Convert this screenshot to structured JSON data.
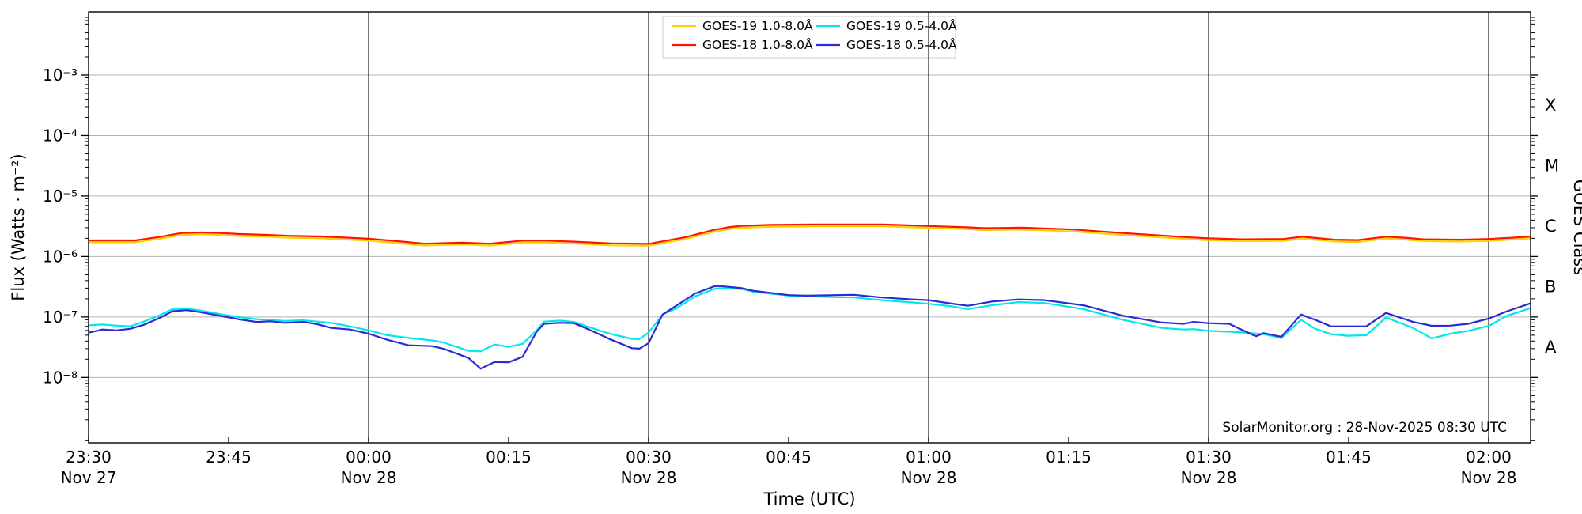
{
  "watermark": "SolarMonitor.org : 28-Nov-2025 08:30 UTC",
  "chart_data": {
    "type": "line",
    "title": "",
    "xlabel": "Time (UTC)",
    "ylabel_left": "Flux (Watts · m⁻²)",
    "ylabel_right": "GOES Class",
    "grid": {
      "horizontal_decades": true,
      "vertical_30min": true,
      "h_color": "#b3b3b3",
      "v_color": "#2e2e2e"
    },
    "x_axis": {
      "units": "minutes after 23:30 UT",
      "t_min": 0,
      "t_max": 154.5,
      "ticks": [
        {
          "t": 0,
          "label": "23:30",
          "date": "Nov 27",
          "gridline": false
        },
        {
          "t": 15,
          "label": "23:45",
          "date": "",
          "gridline": false
        },
        {
          "t": 30,
          "label": "00:00",
          "date": "Nov 28",
          "gridline": true
        },
        {
          "t": 45,
          "label": "00:15",
          "date": "",
          "gridline": false
        },
        {
          "t": 60,
          "label": "00:30",
          "date": "Nov 28",
          "gridline": true
        },
        {
          "t": 75,
          "label": "00:45",
          "date": "",
          "gridline": false
        },
        {
          "t": 90,
          "label": "01:00",
          "date": "Nov 28",
          "gridline": true
        },
        {
          "t": 105,
          "label": "01:15",
          "date": "",
          "gridline": false
        },
        {
          "t": 120,
          "label": "01:30",
          "date": "Nov 28",
          "gridline": true
        },
        {
          "t": 135,
          "label": "01:45",
          "date": "",
          "gridline": false
        },
        {
          "t": 150,
          "label": "02:00",
          "date": "Nov 28",
          "gridline": true
        }
      ]
    },
    "y_axis": {
      "scale": "log",
      "decade_labels": [
        "10⁻³",
        "10⁻⁴",
        "10⁻⁵",
        "10⁻⁶",
        "10⁻⁷",
        "10⁻⁸"
      ],
      "decades": [
        -3,
        -4,
        -5,
        -6,
        -7,
        -8
      ],
      "log_top": -1.954,
      "log_bottom": -9.081
    },
    "right_axis_classes": [
      {
        "label": "X",
        "log_center": -3.5
      },
      {
        "label": "M",
        "log_center": -4.5
      },
      {
        "label": "C",
        "log_center": -5.5
      },
      {
        "label": "B",
        "log_center": -6.5
      },
      {
        "label": "A",
        "log_center": -7.5
      }
    ],
    "legend": {
      "position": "top-center",
      "columns": 2,
      "entries": [
        {
          "label": "GOES-19 1.0-8.0Å",
          "color": "#ffd200"
        },
        {
          "label": "GOES-18 1.0-8.0Å",
          "color": "#ff1400"
        },
        {
          "label": "GOES-19 0.5-4.0Å",
          "color": "#00e8e8"
        },
        {
          "label": "GOES-18 0.5-4.0Å",
          "color": "#2a2ad6"
        }
      ]
    },
    "series": [
      {
        "name": "GOES-19 1.0-8.0Å",
        "color": "#ffd200",
        "width": 2.2,
        "points": [
          [
            0,
            1.72e-06
          ],
          [
            5,
            1.72e-06
          ],
          [
            7.5,
            1.95e-06
          ],
          [
            10,
            2.28e-06
          ],
          [
            12,
            2.33e-06
          ],
          [
            14,
            2.28e-06
          ],
          [
            16,
            2.19e-06
          ],
          [
            19,
            2.12e-06
          ],
          [
            21.5,
            2.05e-06
          ],
          [
            25,
            2e-06
          ],
          [
            30,
            1.83e-06
          ],
          [
            33,
            1.67e-06
          ],
          [
            36,
            1.52e-06
          ],
          [
            40,
            1.58e-06
          ],
          [
            43,
            1.52e-06
          ],
          [
            46.5,
            1.7e-06
          ],
          [
            49,
            1.7e-06
          ],
          [
            52,
            1.64e-06
          ],
          [
            56,
            1.53e-06
          ],
          [
            60,
            1.51e-06
          ],
          [
            64,
            1.95e-06
          ],
          [
            67,
            2.57e-06
          ],
          [
            68.5,
            2.84e-06
          ],
          [
            70,
            2.99e-06
          ],
          [
            73,
            3.1e-06
          ],
          [
            78,
            3.16e-06
          ],
          [
            85,
            3.16e-06
          ],
          [
            90,
            2.98e-06
          ],
          [
            94,
            2.84e-06
          ],
          [
            96,
            2.74e-06
          ],
          [
            100,
            2.79e-06
          ],
          [
            105.5,
            2.6e-06
          ],
          [
            111,
            2.26e-06
          ],
          [
            117.5,
            1.95e-06
          ],
          [
            120,
            1.86e-06
          ],
          [
            123.5,
            1.8e-06
          ],
          [
            128,
            1.81e-06
          ],
          [
            130,
            1.98e-06
          ],
          [
            133.5,
            1.77e-06
          ],
          [
            136,
            1.74e-06
          ],
          [
            139,
            1.98e-06
          ],
          [
            141,
            1.91e-06
          ],
          [
            143,
            1.8e-06
          ],
          [
            147,
            1.77e-06
          ],
          [
            150,
            1.81e-06
          ],
          [
            152.5,
            1.91e-06
          ],
          [
            154.5,
            2e-06
          ]
        ]
      },
      {
        "name": "GOES-18 1.0-8.0Å",
        "color": "#ff1400",
        "width": 2.2,
        "points": [
          [
            0,
            1.85e-06
          ],
          [
            5,
            1.85e-06
          ],
          [
            7.5,
            2.1e-06
          ],
          [
            10,
            2.45e-06
          ],
          [
            12,
            2.5e-06
          ],
          [
            14,
            2.45e-06
          ],
          [
            16,
            2.36e-06
          ],
          [
            19,
            2.28e-06
          ],
          [
            21.5,
            2.2e-06
          ],
          [
            25,
            2.15e-06
          ],
          [
            30,
            1.97e-06
          ],
          [
            33,
            1.8e-06
          ],
          [
            36,
            1.63e-06
          ],
          [
            40,
            1.7e-06
          ],
          [
            43,
            1.63e-06
          ],
          [
            46.5,
            1.83e-06
          ],
          [
            49,
            1.83e-06
          ],
          [
            52,
            1.76e-06
          ],
          [
            56,
            1.65e-06
          ],
          [
            60,
            1.62e-06
          ],
          [
            64,
            2.1e-06
          ],
          [
            67,
            2.76e-06
          ],
          [
            68.5,
            3.05e-06
          ],
          [
            70,
            3.22e-06
          ],
          [
            73,
            3.33e-06
          ],
          [
            78,
            3.4e-06
          ],
          [
            85,
            3.4e-06
          ],
          [
            90,
            3.2e-06
          ],
          [
            94,
            3.05e-06
          ],
          [
            96,
            2.95e-06
          ],
          [
            100,
            3e-06
          ],
          [
            105.5,
            2.8e-06
          ],
          [
            111,
            2.43e-06
          ],
          [
            117.5,
            2.1e-06
          ],
          [
            120,
            2e-06
          ],
          [
            123.5,
            1.93e-06
          ],
          [
            128,
            1.95e-06
          ],
          [
            130,
            2.13e-06
          ],
          [
            133.5,
            1.9e-06
          ],
          [
            136,
            1.87e-06
          ],
          [
            139,
            2.13e-06
          ],
          [
            141,
            2.05e-06
          ],
          [
            143,
            1.93e-06
          ],
          [
            147,
            1.9e-06
          ],
          [
            150,
            1.95e-06
          ],
          [
            152.5,
            2.05e-06
          ],
          [
            154.5,
            2.15e-06
          ]
        ]
      },
      {
        "name": "GOES-19 0.5-4.0Å",
        "color": "#00e8e8",
        "width": 2.2,
        "points": [
          [
            0,
            7.3e-08
          ],
          [
            1.5,
            7.5e-08
          ],
          [
            3,
            7.2e-08
          ],
          [
            4.5,
            7e-08
          ],
          [
            6,
            8.5e-08
          ],
          [
            7.5,
            1.05e-07
          ],
          [
            9,
            1.35e-07
          ],
          [
            10.5,
            1.38e-07
          ],
          [
            12,
            1.28e-07
          ],
          [
            14,
            1.12e-07
          ],
          [
            16,
            1e-07
          ],
          [
            18,
            9.2e-08
          ],
          [
            19.5,
            8.9e-08
          ],
          [
            21,
            8.6e-08
          ],
          [
            23,
            8.8e-08
          ],
          [
            24.5,
            8.4e-08
          ],
          [
            26,
            8e-08
          ],
          [
            28,
            7e-08
          ],
          [
            30,
            6e-08
          ],
          [
            32,
            5e-08
          ],
          [
            34.3,
            4.5e-08
          ],
          [
            36.8,
            4.1e-08
          ],
          [
            38,
            3.8e-08
          ],
          [
            40.7,
            2.75e-08
          ],
          [
            42,
            2.7e-08
          ],
          [
            43.5,
            3.5e-08
          ],
          [
            45,
            3.2e-08
          ],
          [
            46.5,
            3.6e-08
          ],
          [
            48,
            6e-08
          ],
          [
            48.8,
            8.4e-08
          ],
          [
            50.5,
            8.7e-08
          ],
          [
            52,
            8.3e-08
          ],
          [
            53.5,
            6.9e-08
          ],
          [
            56,
            5.2e-08
          ],
          [
            58.2,
            4.35e-08
          ],
          [
            59,
            4.3e-08
          ],
          [
            60,
            5.5e-08
          ],
          [
            61.5,
            1.1e-07
          ],
          [
            63,
            1.4e-07
          ],
          [
            65,
            2.2e-07
          ],
          [
            67,
            2.9e-07
          ],
          [
            67.6,
            3e-07
          ],
          [
            70,
            2.9e-07
          ],
          [
            71.3,
            2.6e-07
          ],
          [
            75,
            2.26e-07
          ],
          [
            77,
            2.2e-07
          ],
          [
            80,
            2.13e-07
          ],
          [
            82,
            2.1e-07
          ],
          [
            85,
            1.9e-07
          ],
          [
            88.3,
            1.74e-07
          ],
          [
            90,
            1.65e-07
          ],
          [
            92.5,
            1.5e-07
          ],
          [
            94.2,
            1.35e-07
          ],
          [
            96.8,
            1.57e-07
          ],
          [
            99.6,
            1.76e-07
          ],
          [
            102.4,
            1.7e-07
          ],
          [
            106.6,
            1.35e-07
          ],
          [
            110.8,
            9e-08
          ],
          [
            115,
            6.6e-08
          ],
          [
            117.3,
            6.2e-08
          ],
          [
            118.4,
            6.3e-08
          ],
          [
            120,
            5.9e-08
          ],
          [
            122.2,
            5.7e-08
          ],
          [
            124.8,
            5.4e-08
          ],
          [
            125.1,
            5.3e-08
          ],
          [
            125.9,
            5.2e-08
          ],
          [
            127.8,
            4.5e-08
          ],
          [
            129.9,
            9e-08
          ],
          [
            131.4,
            6.4e-08
          ],
          [
            133.1,
            5.2e-08
          ],
          [
            134.9,
            4.9e-08
          ],
          [
            136.9,
            5e-08
          ],
          [
            139,
            9.8e-08
          ],
          [
            141.9,
            6.6e-08
          ],
          [
            143.9,
            4.4e-08
          ],
          [
            145.9,
            5.3e-08
          ],
          [
            147.8,
            5.9e-08
          ],
          [
            150,
            7.1e-08
          ],
          [
            152,
            1.05e-07
          ],
          [
            154.5,
            1.4e-07
          ]
        ]
      },
      {
        "name": "GOES-18 0.5-4.0Å",
        "color": "#2a2ad6",
        "width": 2.2,
        "points": [
          [
            0,
            5.5e-08
          ],
          [
            1.5,
            6.2e-08
          ],
          [
            3,
            6e-08
          ],
          [
            4.5,
            6.4e-08
          ],
          [
            6,
            7.5e-08
          ],
          [
            7.5,
            9.5e-08
          ],
          [
            9,
            1.25e-07
          ],
          [
            10.5,
            1.3e-07
          ],
          [
            12,
            1.2e-07
          ],
          [
            14,
            1.05e-07
          ],
          [
            16,
            9.2e-08
          ],
          [
            18,
            8.3e-08
          ],
          [
            19.5,
            8.5e-08
          ],
          [
            21,
            8e-08
          ],
          [
            23,
            8.3e-08
          ],
          [
            24.5,
            7.6e-08
          ],
          [
            26,
            6.6e-08
          ],
          [
            28,
            6.2e-08
          ],
          [
            30,
            5.3e-08
          ],
          [
            32,
            4.2e-08
          ],
          [
            34.3,
            3.4e-08
          ],
          [
            36.8,
            3.3e-08
          ],
          [
            38,
            3e-08
          ],
          [
            40.7,
            2.1e-08
          ],
          [
            42,
            1.4e-08
          ],
          [
            43.5,
            1.8e-08
          ],
          [
            45,
            1.78e-08
          ],
          [
            46.5,
            2.2e-08
          ],
          [
            48,
            5.7e-08
          ],
          [
            48.8,
            7.7e-08
          ],
          [
            50.5,
            8e-08
          ],
          [
            52,
            7.9e-08
          ],
          [
            53.5,
            6.3e-08
          ],
          [
            56,
            4.2e-08
          ],
          [
            58.2,
            3.05e-08
          ],
          [
            59,
            3e-08
          ],
          [
            60,
            3.7e-08
          ],
          [
            61.5,
            1.1e-07
          ],
          [
            63,
            1.55e-07
          ],
          [
            65,
            2.45e-07
          ],
          [
            67,
            3.2e-07
          ],
          [
            67.6,
            3.25e-07
          ],
          [
            70,
            3e-07
          ],
          [
            71.3,
            2.7e-07
          ],
          [
            75,
            2.3e-07
          ],
          [
            77,
            2.25e-07
          ],
          [
            80,
            2.3e-07
          ],
          [
            82,
            2.33e-07
          ],
          [
            85,
            2.1e-07
          ],
          [
            88.3,
            1.95e-07
          ],
          [
            90,
            1.9e-07
          ],
          [
            92.5,
            1.66e-07
          ],
          [
            94.2,
            1.53e-07
          ],
          [
            96.8,
            1.8e-07
          ],
          [
            99.6,
            1.95e-07
          ],
          [
            102.4,
            1.9e-07
          ],
          [
            106.6,
            1.56e-07
          ],
          [
            110.8,
            1.05e-07
          ],
          [
            115,
            8.1e-08
          ],
          [
            117.3,
            7.7e-08
          ],
          [
            118.4,
            8.3e-08
          ],
          [
            120,
            7.9e-08
          ],
          [
            122.2,
            7.7e-08
          ],
          [
            124.8,
            5e-08
          ],
          [
            125.1,
            4.8e-08
          ],
          [
            125.9,
            5.4e-08
          ],
          [
            127.8,
            4.7e-08
          ],
          [
            129.9,
            1.1e-07
          ],
          [
            131.4,
            9e-08
          ],
          [
            133.1,
            7e-08
          ],
          [
            134.9,
            7e-08
          ],
          [
            136.9,
            7e-08
          ],
          [
            139,
            1.17e-07
          ],
          [
            141.9,
            8.3e-08
          ],
          [
            143.9,
            7.15e-08
          ],
          [
            145.9,
            7.2e-08
          ],
          [
            147.8,
            7.7e-08
          ],
          [
            150,
            9.4e-08
          ],
          [
            152,
            1.25e-07
          ],
          [
            154.5,
            1.68e-07
          ]
        ]
      }
    ]
  }
}
